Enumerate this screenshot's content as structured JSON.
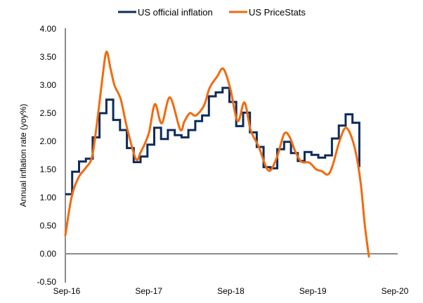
{
  "chart_data": {
    "type": "line",
    "title": "",
    "xlabel": "",
    "ylabel": "Annual inflation rate (yoy%)",
    "ylim": [
      -0.5,
      4.0
    ],
    "yticks": [
      "4.00",
      "3.50",
      "3.00",
      "2.50",
      "2.00",
      "1.50",
      "1.00",
      "0.50",
      "0.00",
      "-0.50"
    ],
    "ytick_values": [
      4.0,
      3.5,
      3.0,
      2.5,
      2.0,
      1.5,
      1.0,
      0.5,
      0.0,
      -0.5
    ],
    "xticks": [
      "Sep-16",
      "Sep-17",
      "Sep-18",
      "Sep-19",
      "Sep-20"
    ],
    "x_start": "Sep-16",
    "x_end": "Sep-20",
    "x_unit": "month",
    "grid": false,
    "legend_position": "top-center",
    "legend": [
      "US official inflation",
      "US PriceStats"
    ],
    "series": [
      {
        "name": "US official inflation",
        "style": "step",
        "color": "#0d2b5b",
        "start_month_index": 0,
        "values": [
          1.06,
          1.46,
          1.64,
          1.69,
          2.07,
          2.5,
          2.74,
          2.38,
          2.2,
          1.88,
          1.63,
          1.73,
          1.94,
          2.24,
          2.04,
          2.2,
          2.11,
          2.07,
          2.2,
          2.36,
          2.46,
          2.8,
          2.87,
          2.95,
          2.7,
          2.27,
          2.51,
          2.16,
          1.9,
          1.54,
          1.52,
          1.86,
          1.99,
          1.79,
          1.65,
          1.81,
          1.76,
          1.71,
          1.75,
          2.05,
          2.28,
          2.48,
          2.33
        ],
        "final_value": 1.54
      },
      {
        "name": "US PriceStats",
        "style": "smooth",
        "color": "#f26a0e",
        "points": [
          [
            0.0,
            0.33
          ],
          [
            0.9,
            1.0
          ],
          [
            1.9,
            1.35
          ],
          [
            3.0,
            1.53
          ],
          [
            3.9,
            1.72
          ],
          [
            4.6,
            2.3
          ],
          [
            5.4,
            3.1
          ],
          [
            6.0,
            3.59
          ],
          [
            6.6,
            3.3
          ],
          [
            7.2,
            2.99
          ],
          [
            8.1,
            2.75
          ],
          [
            9.0,
            2.25
          ],
          [
            10.3,
            1.69
          ],
          [
            11.0,
            1.8
          ],
          [
            12.2,
            2.14
          ],
          [
            13.1,
            2.66
          ],
          [
            14.1,
            2.32
          ],
          [
            15.3,
            2.78
          ],
          [
            16.8,
            2.21
          ],
          [
            17.4,
            2.35
          ],
          [
            18.2,
            2.5
          ],
          [
            19.1,
            2.46
          ],
          [
            20.3,
            2.64
          ],
          [
            21.1,
            2.95
          ],
          [
            22.2,
            3.15
          ],
          [
            23.1,
            3.29
          ],
          [
            24.1,
            2.95
          ],
          [
            25.2,
            2.36
          ],
          [
            26.2,
            2.69
          ],
          [
            27.1,
            2.2
          ],
          [
            28.3,
            1.9
          ],
          [
            29.7,
            1.48
          ],
          [
            30.9,
            1.7
          ],
          [
            32.0,
            2.13
          ],
          [
            32.8,
            2.08
          ],
          [
            33.6,
            1.83
          ],
          [
            34.5,
            1.64
          ],
          [
            35.7,
            1.62
          ],
          [
            36.7,
            1.5
          ],
          [
            37.5,
            1.47
          ],
          [
            38.4,
            1.41
          ],
          [
            39.1,
            1.57
          ],
          [
            40.1,
            2.0
          ],
          [
            41.1,
            2.24
          ],
          [
            42.3,
            1.9
          ],
          [
            43.2,
            1.26
          ],
          [
            43.8,
            0.52
          ],
          [
            44.4,
            -0.05
          ]
        ]
      }
    ]
  }
}
